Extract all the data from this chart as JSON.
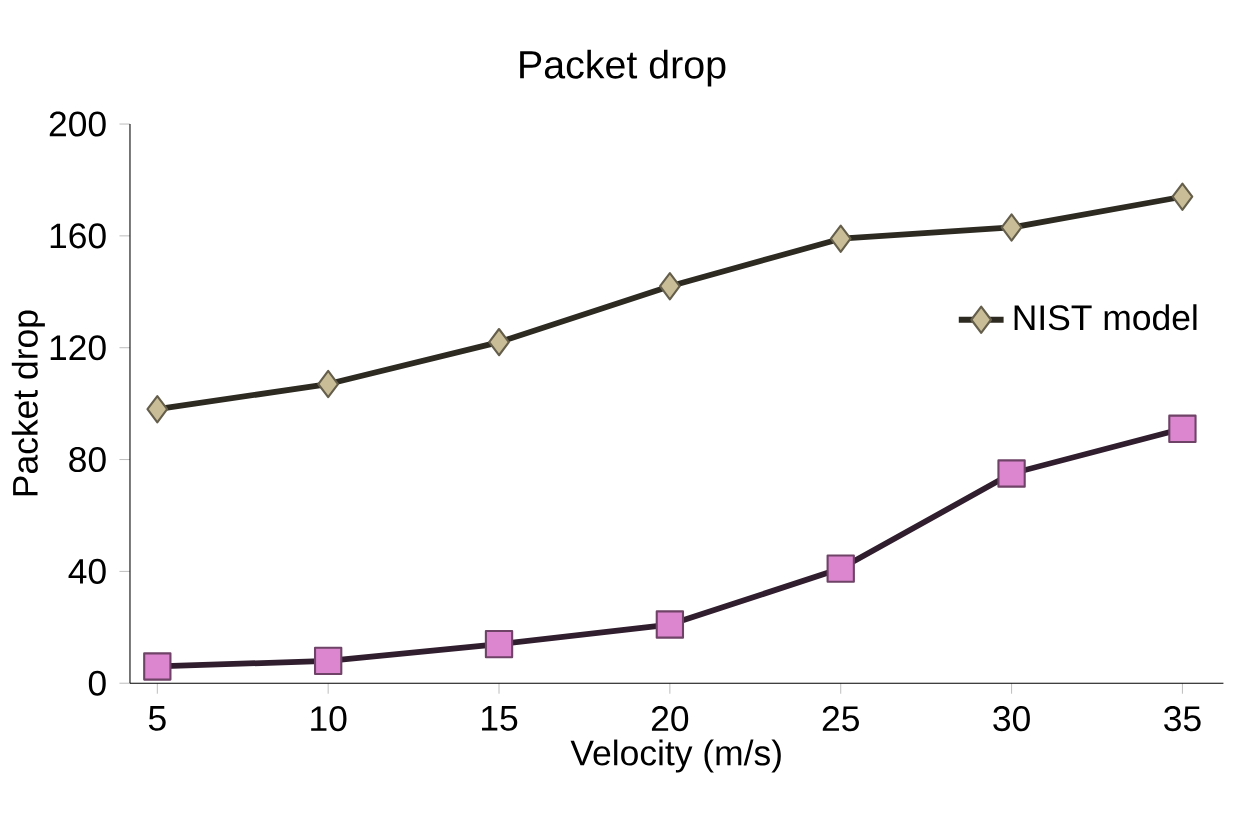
{
  "chart_data": {
    "type": "line",
    "title": "Packet drop",
    "xlabel": "Velocity (m/s)",
    "ylabel": "Packet drop",
    "categories": [
      "5",
      "10",
      "15",
      "20",
      "25",
      "30",
      "35"
    ],
    "ylim": [
      0,
      200
    ],
    "yticks": [
      0,
      40,
      80,
      120,
      160,
      200
    ],
    "grid": false,
    "legend": "right",
    "series": [
      {
        "name": "NIST model",
        "color": "#c8bd97",
        "marker": "diamond",
        "values": [
          98,
          107,
          122,
          142,
          159,
          163,
          174
        ]
      },
      {
        "color": "#dc86cf",
        "marker": "square",
        "values": [
          6,
          8,
          14,
          21,
          41,
          75,
          91
        ]
      }
    ]
  }
}
